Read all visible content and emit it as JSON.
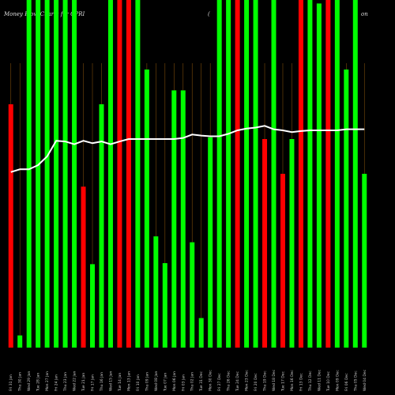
{
  "title_parts": {
    "left": "Money Flow  Charts for CPRI",
    "middle": "(",
    "right": "on"
  },
  "colors": {
    "background": "#000000",
    "up": "#00ff00",
    "down": "#ff0000",
    "line": "#ffffff",
    "grid": "#7a4a0a"
  },
  "chart_data": {
    "type": "bar",
    "title": "Money Flow  Charts for CPRI",
    "ylim": [
      0,
      100
    ],
    "categories": [
      "Fri 31 Jan",
      "Thu 30 Jan",
      "Wed 29 Jan",
      "Tue 28 Jan",
      "Mon 27 Jan",
      "Fri 24 Jan",
      "Thu 23 Jan",
      "Wed 22 Jan",
      "Tue 21 Jan",
      "Fri 17 Jan",
      "Thu 16 Jan",
      "Wed 15 Jan",
      "Tue 14 Jan",
      "Mon 13 Jan",
      "Fri 10 Jan",
      "Thu 09 Jan",
      "Wed 08 Jan",
      "Tue 07 Jan",
      "Mon 06 Jan",
      "Fri 03 Jan",
      "Thu 02 Jan",
      "Tue 31 Dec",
      "Mon 30 Dec",
      "Fri 27 Dec",
      "Thu 26 Dec",
      "Tue 24 Dec",
      "Mon 23 Dec",
      "Fri 20 Dec",
      "Thu 19 Dec",
      "Wed 18 Dec",
      "Tue 17 Dec",
      "Mon 16 Dec",
      "Fri 13 Dec",
      "Thu 12 Dec",
      "Wed 11 Dec",
      "Tue 10 Dec",
      "Mon 09 Dec",
      "Fri 06 Dec",
      "Thu 05 Dec",
      "Wed 04 Dec"
    ],
    "bars": [
      {
        "value": 70.0,
        "direction": "down"
      },
      {
        "value": 3.5,
        "direction": "up"
      },
      {
        "value": 100,
        "direction": "up"
      },
      {
        "value": 100,
        "direction": "up"
      },
      {
        "value": 100,
        "direction": "up"
      },
      {
        "value": 100,
        "direction": "up"
      },
      {
        "value": 100,
        "direction": "up"
      },
      {
        "value": 100,
        "direction": "up"
      },
      {
        "value": 46.3,
        "direction": "down"
      },
      {
        "value": 24.0,
        "direction": "up"
      },
      {
        "value": 70.0,
        "direction": "up"
      },
      {
        "value": 100,
        "direction": "up"
      },
      {
        "value": 100,
        "direction": "down"
      },
      {
        "value": 100,
        "direction": "down"
      },
      {
        "value": 100,
        "direction": "up"
      },
      {
        "value": 80.0,
        "direction": "up"
      },
      {
        "value": 32.0,
        "direction": "up"
      },
      {
        "value": 24.3,
        "direction": "up"
      },
      {
        "value": 74.0,
        "direction": "up"
      },
      {
        "value": 74.0,
        "direction": "up"
      },
      {
        "value": 30.3,
        "direction": "up"
      },
      {
        "value": 8.5,
        "direction": "up"
      },
      {
        "value": 60.5,
        "direction": "up"
      },
      {
        "value": 100,
        "direction": "up"
      },
      {
        "value": 100,
        "direction": "up"
      },
      {
        "value": 100,
        "direction": "down"
      },
      {
        "value": 100,
        "direction": "up"
      },
      {
        "value": 100,
        "direction": "up"
      },
      {
        "value": 60.0,
        "direction": "down"
      },
      {
        "value": 100,
        "direction": "up"
      },
      {
        "value": 50.0,
        "direction": "down"
      },
      {
        "value": 60.0,
        "direction": "up"
      },
      {
        "value": 100,
        "direction": "down"
      },
      {
        "value": 100,
        "direction": "up"
      },
      {
        "value": 99.0,
        "direction": "up"
      },
      {
        "value": 100,
        "direction": "down"
      },
      {
        "value": 100,
        "direction": "up"
      },
      {
        "value": 80.0,
        "direction": "up"
      },
      {
        "value": 100,
        "direction": "up"
      },
      {
        "value": 50.0,
        "direction": "up"
      }
    ],
    "line": [
      50.5,
      51.3,
      51.3,
      52.5,
      55.0,
      59.5,
      59.3,
      58.5,
      59.5,
      58.8,
      59.3,
      58.5,
      59.3,
      60.0,
      60.0,
      60.0,
      60.0,
      60.0,
      60.0,
      60.3,
      61.3,
      61.0,
      60.8,
      60.8,
      61.5,
      62.5,
      63.0,
      63.3,
      63.8,
      62.8,
      62.5,
      62.0,
      62.3,
      62.5,
      62.5,
      62.5,
      62.5,
      62.8,
      62.8,
      62.8
    ]
  }
}
